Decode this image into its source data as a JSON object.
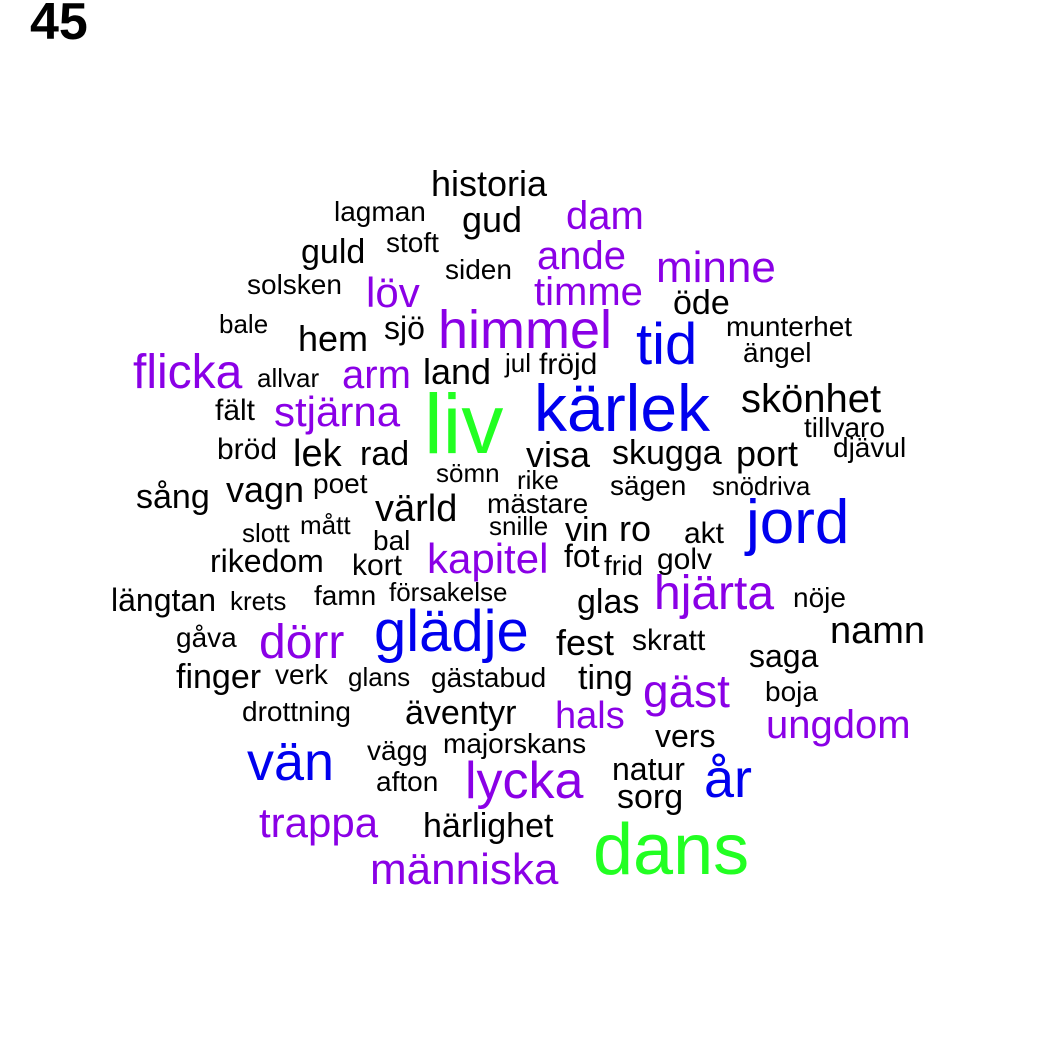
{
  "page_number": "45",
  "colors": {
    "black": "#000000",
    "purple": "#8a00e6",
    "blue": "#0000ee",
    "green": "#22ff22"
  },
  "words": [
    {
      "text": "historia",
      "color": "black"
    },
    {
      "text": "lagman",
      "color": "black"
    },
    {
      "text": "gud",
      "color": "black"
    },
    {
      "text": "dam",
      "color": "purple"
    },
    {
      "text": "guld",
      "color": "black"
    },
    {
      "text": "stoft",
      "color": "black"
    },
    {
      "text": "ande",
      "color": "purple"
    },
    {
      "text": "siden",
      "color": "black"
    },
    {
      "text": "minne",
      "color": "purple"
    },
    {
      "text": "solsken",
      "color": "black"
    },
    {
      "text": "löv",
      "color": "purple"
    },
    {
      "text": "timme",
      "color": "purple"
    },
    {
      "text": "öde",
      "color": "black"
    },
    {
      "text": "bale",
      "color": "black"
    },
    {
      "text": "sjö",
      "color": "black"
    },
    {
      "text": "himmel",
      "color": "purple"
    },
    {
      "text": "munterhet",
      "color": "black"
    },
    {
      "text": "hem",
      "color": "black"
    },
    {
      "text": "tid",
      "color": "blue"
    },
    {
      "text": "ängel",
      "color": "black"
    },
    {
      "text": "flicka",
      "color": "purple"
    },
    {
      "text": "jul",
      "color": "black"
    },
    {
      "text": "fröjd",
      "color": "black"
    },
    {
      "text": "allvar",
      "color": "black"
    },
    {
      "text": "arm",
      "color": "purple"
    },
    {
      "text": "land",
      "color": "black"
    },
    {
      "text": "kärlek",
      "color": "blue"
    },
    {
      "text": "skönhet",
      "color": "black"
    },
    {
      "text": "fält",
      "color": "black"
    },
    {
      "text": "stjärna",
      "color": "purple"
    },
    {
      "text": "liv",
      "color": "green"
    },
    {
      "text": "tillvaro",
      "color": "black"
    },
    {
      "text": "djävul",
      "color": "black"
    },
    {
      "text": "bröd",
      "color": "black"
    },
    {
      "text": "lek",
      "color": "black"
    },
    {
      "text": "rad",
      "color": "black"
    },
    {
      "text": "visa",
      "color": "black"
    },
    {
      "text": "skugga",
      "color": "black"
    },
    {
      "text": "port",
      "color": "black"
    },
    {
      "text": "sömn",
      "color": "black"
    },
    {
      "text": "rike",
      "color": "black"
    },
    {
      "text": "sägen",
      "color": "black"
    },
    {
      "text": "snödriva",
      "color": "black"
    },
    {
      "text": "sång",
      "color": "black"
    },
    {
      "text": "vagn",
      "color": "black"
    },
    {
      "text": "poet",
      "color": "black"
    },
    {
      "text": "värld",
      "color": "black"
    },
    {
      "text": "mästare",
      "color": "black"
    },
    {
      "text": "jord",
      "color": "blue"
    },
    {
      "text": "slott",
      "color": "black"
    },
    {
      "text": "mått",
      "color": "black"
    },
    {
      "text": "snille",
      "color": "black"
    },
    {
      "text": "vin",
      "color": "black"
    },
    {
      "text": "ro",
      "color": "black"
    },
    {
      "text": "akt",
      "color": "black"
    },
    {
      "text": "bal",
      "color": "black"
    },
    {
      "text": "rikedom",
      "color": "black"
    },
    {
      "text": "kapitel",
      "color": "purple"
    },
    {
      "text": "fot",
      "color": "black"
    },
    {
      "text": "frid",
      "color": "black"
    },
    {
      "text": "golv",
      "color": "black"
    },
    {
      "text": "kort",
      "color": "black"
    },
    {
      "text": "längtan",
      "color": "black"
    },
    {
      "text": "krets",
      "color": "black"
    },
    {
      "text": "famn",
      "color": "black"
    },
    {
      "text": "försakelse",
      "color": "black"
    },
    {
      "text": "glas",
      "color": "black"
    },
    {
      "text": "hjärta",
      "color": "purple"
    },
    {
      "text": "nöje",
      "color": "black"
    },
    {
      "text": "gåva",
      "color": "black"
    },
    {
      "text": "dörr",
      "color": "purple"
    },
    {
      "text": "glädje",
      "color": "blue"
    },
    {
      "text": "fest",
      "color": "black"
    },
    {
      "text": "skratt",
      "color": "black"
    },
    {
      "text": "namn",
      "color": "black"
    },
    {
      "text": "saga",
      "color": "black"
    },
    {
      "text": "finger",
      "color": "black"
    },
    {
      "text": "verk",
      "color": "black"
    },
    {
      "text": "glans",
      "color": "black"
    },
    {
      "text": "gästabud",
      "color": "black"
    },
    {
      "text": "ting",
      "color": "black"
    },
    {
      "text": "gäst",
      "color": "purple"
    },
    {
      "text": "boja",
      "color": "black"
    },
    {
      "text": "drottning",
      "color": "black"
    },
    {
      "text": "äventyr",
      "color": "black"
    },
    {
      "text": "hals",
      "color": "purple"
    },
    {
      "text": "ungdom",
      "color": "purple"
    },
    {
      "text": "vers",
      "color": "black"
    },
    {
      "text": "majorskans",
      "color": "black"
    },
    {
      "text": "vän",
      "color": "blue"
    },
    {
      "text": "vägg",
      "color": "black"
    },
    {
      "text": "natur",
      "color": "black"
    },
    {
      "text": "lycka",
      "color": "purple"
    },
    {
      "text": "år",
      "color": "blue"
    },
    {
      "text": "afton",
      "color": "black"
    },
    {
      "text": "sorg",
      "color": "black"
    },
    {
      "text": "trappa",
      "color": "purple"
    },
    {
      "text": "härlighet",
      "color": "black"
    },
    {
      "text": "dans",
      "color": "green"
    },
    {
      "text": "människa",
      "color": "purple"
    }
  ]
}
